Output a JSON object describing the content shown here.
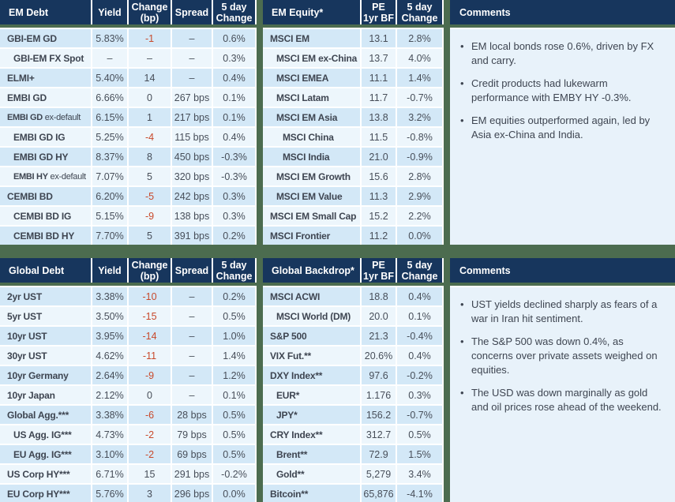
{
  "colors": {
    "header_navy": "#17365d",
    "accent_green": "#4c6c4f",
    "row_dark": "#d3e8f7",
    "row_light": "#edf6fc",
    "comments_bg": "#e8f2fa",
    "label_text": "#3e4551",
    "value_text": "#474e59",
    "negative_red": "#c8492b"
  },
  "top": {
    "em_debt": {
      "title": "EM Debt",
      "columns": [
        "Yield",
        "Change\n(bp)",
        "Spread",
        "5 day\nChange"
      ],
      "negative_red_column": 1,
      "rows": [
        {
          "name": "GBI-EM GD",
          "indent": 0,
          "values": [
            "5.83%",
            "-1",
            "–",
            "0.6%"
          ]
        },
        {
          "name": "GBI-EM FX Spot",
          "indent": 1,
          "values": [
            "–",
            "–",
            "–",
            "0.3%"
          ]
        },
        {
          "name": "ELMI+",
          "indent": 0,
          "values": [
            "5.40%",
            "14",
            "–",
            "0.4%"
          ]
        },
        {
          "name": "EMBI GD",
          "indent": 0,
          "values": [
            "6.66%",
            "0",
            "267 bps",
            "0.1%"
          ]
        },
        {
          "name": "EMBI GD",
          "name_light": "ex-default",
          "indent": 0,
          "values": [
            "6.15%",
            "1",
            "217 bps",
            "0.1%"
          ]
        },
        {
          "name": "EMBI GD IG",
          "indent": 1,
          "values": [
            "5.25%",
            "-4",
            "115 bps",
            "0.4%"
          ]
        },
        {
          "name": "EMBI GD HY",
          "indent": 1,
          "values": [
            "8.37%",
            "8",
            "450 bps",
            "-0.3%"
          ]
        },
        {
          "name": "EMBI HY",
          "name_light": "ex-default",
          "indent": 1,
          "values": [
            "7.07%",
            "5",
            "320 bps",
            "-0.3%"
          ]
        },
        {
          "name": "CEMBI BD",
          "indent": 0,
          "values": [
            "6.20%",
            "-5",
            "242 bps",
            "0.3%"
          ]
        },
        {
          "name": "CEMBI BD IG",
          "indent": 1,
          "values": [
            "5.15%",
            "-9",
            "138 bps",
            "0.3%"
          ]
        },
        {
          "name": "CEMBI BD HY",
          "indent": 1,
          "values": [
            "7.70%",
            "5",
            "391 bps",
            "0.2%"
          ]
        }
      ]
    },
    "em_equity": {
      "title": "EM Equity*",
      "columns": [
        "PE\n1yr BF",
        "5 day\nChange"
      ],
      "negative_red_column": null,
      "rows": [
        {
          "name": "MSCI EM",
          "indent": 0,
          "values": [
            "13.1",
            "2.8%"
          ]
        },
        {
          "name": "MSCI EM ex-China",
          "indent": 1,
          "values": [
            "13.7",
            "4.0%"
          ]
        },
        {
          "name": "MSCI EMEA",
          "indent": 1,
          "values": [
            "11.1",
            "1.4%"
          ]
        },
        {
          "name": "MSCI Latam",
          "indent": 1,
          "values": [
            "11.7",
            "-0.7%"
          ]
        },
        {
          "name": "MSCI EM Asia",
          "indent": 1,
          "values": [
            "13.8",
            "3.2%"
          ]
        },
        {
          "name": "MSCI China",
          "indent": 2,
          "values": [
            "11.5",
            "-0.8%"
          ]
        },
        {
          "name": "MSCI India",
          "indent": 2,
          "values": [
            "21.0",
            "-0.9%"
          ]
        },
        {
          "name": "MSCI EM Growth",
          "indent": 1,
          "values": [
            "15.6",
            "2.8%"
          ]
        },
        {
          "name": "MSCI EM Value",
          "indent": 1,
          "values": [
            "11.3",
            "2.9%"
          ]
        },
        {
          "name": "MSCI EM Small Cap",
          "indent": 0,
          "values": [
            "15.2",
            "2.2%"
          ]
        },
        {
          "name": "MSCI Frontier",
          "indent": 0,
          "values": [
            "11.2",
            "0.0%"
          ]
        }
      ]
    },
    "comments": {
      "title": "Comments",
      "bullets": [
        "EM local bonds rose 0.6%, driven by FX and carry.",
        "Credit products had lukewarm performance with EMBY HY -0.3%.",
        "EM equities outperformed again, led by Asia ex-China and India."
      ]
    }
  },
  "bottom": {
    "global_debt": {
      "title": "Global Debt",
      "columns": [
        "Yield",
        "Change\n(bp)",
        "Spread",
        "5 day\nChange"
      ],
      "negative_red_column": 1,
      "rows": [
        {
          "name": "2yr UST",
          "indent": 0,
          "values": [
            "3.38%",
            "-10",
            "–",
            "0.2%"
          ]
        },
        {
          "name": "5yr UST",
          "indent": 0,
          "values": [
            "3.50%",
            "-15",
            "–",
            "0.5%"
          ]
        },
        {
          "name": "10yr UST",
          "indent": 0,
          "values": [
            "3.95%",
            "-14",
            "–",
            "1.0%"
          ]
        },
        {
          "name": "30yr UST",
          "indent": 0,
          "values": [
            "4.62%",
            "-11",
            "–",
            "1.4%"
          ]
        },
        {
          "name": "10yr Germany",
          "indent": 0,
          "values": [
            "2.64%",
            "-9",
            "–",
            "1.2%"
          ]
        },
        {
          "name": "10yr Japan",
          "indent": 0,
          "values": [
            "2.12%",
            "0",
            "–",
            "0.1%"
          ]
        },
        {
          "name": "Global Agg.***",
          "indent": 0,
          "values": [
            "3.38%",
            "-6",
            "28 bps",
            "0.5%"
          ]
        },
        {
          "name": "US Agg. IG***",
          "indent": 1,
          "values": [
            "4.73%",
            "-2",
            "79 bps",
            "0.5%"
          ]
        },
        {
          "name": "EU Agg. IG***",
          "indent": 1,
          "values": [
            "3.10%",
            "-2",
            "69 bps",
            "0.5%"
          ]
        },
        {
          "name": "US Corp HY***",
          "indent": 0,
          "values": [
            "6.71%",
            "15",
            "291 bps",
            "-0.2%"
          ]
        },
        {
          "name": "EU Corp HY***",
          "indent": 0,
          "values": [
            "5.76%",
            "3",
            "296 bps",
            "0.0%"
          ]
        }
      ]
    },
    "global_backdrop": {
      "title": "Global Backdrop*",
      "columns": [
        "PE\n1yr BF",
        "5 day\nChange"
      ],
      "negative_red_column": null,
      "rows": [
        {
          "name": "MSCI ACWI",
          "indent": 0,
          "values": [
            "18.8",
            "0.4%"
          ]
        },
        {
          "name": "MSCI World (DM)",
          "indent": 1,
          "values": [
            "20.0",
            "0.1%"
          ]
        },
        {
          "name": "S&P 500",
          "indent": 0,
          "values": [
            "21.3",
            "-0.4%"
          ]
        },
        {
          "name": "VIX Fut.**",
          "indent": 0,
          "values": [
            "20.6%",
            "0.4%"
          ]
        },
        {
          "name": "DXY Index**",
          "indent": 0,
          "values": [
            "97.6",
            "-0.2%"
          ]
        },
        {
          "name": "EUR*",
          "indent": 1,
          "values": [
            "1.176",
            "0.3%"
          ]
        },
        {
          "name": "JPY*",
          "indent": 1,
          "values": [
            "156.2",
            "-0.7%"
          ]
        },
        {
          "name": "CRY Index**",
          "indent": 0,
          "values": [
            "312.7",
            "0.5%"
          ]
        },
        {
          "name": "Brent**",
          "indent": 1,
          "values": [
            "72.9",
            "1.5%"
          ]
        },
        {
          "name": "Gold**",
          "indent": 1,
          "values": [
            "5,279",
            "3.4%"
          ]
        },
        {
          "name": "Bitcoin**",
          "indent": 0,
          "values": [
            "65,876",
            "-4.1%"
          ]
        }
      ]
    },
    "comments": {
      "title": "Comments",
      "bullets": [
        "UST yields declined sharply as fears of a war in Iran hit sentiment.",
        "The S&P 500 was down 0.4%, as concerns over private assets weighed on equities.",
        "The USD was down marginally as gold and oil prices rose ahead of the weekend."
      ]
    }
  }
}
